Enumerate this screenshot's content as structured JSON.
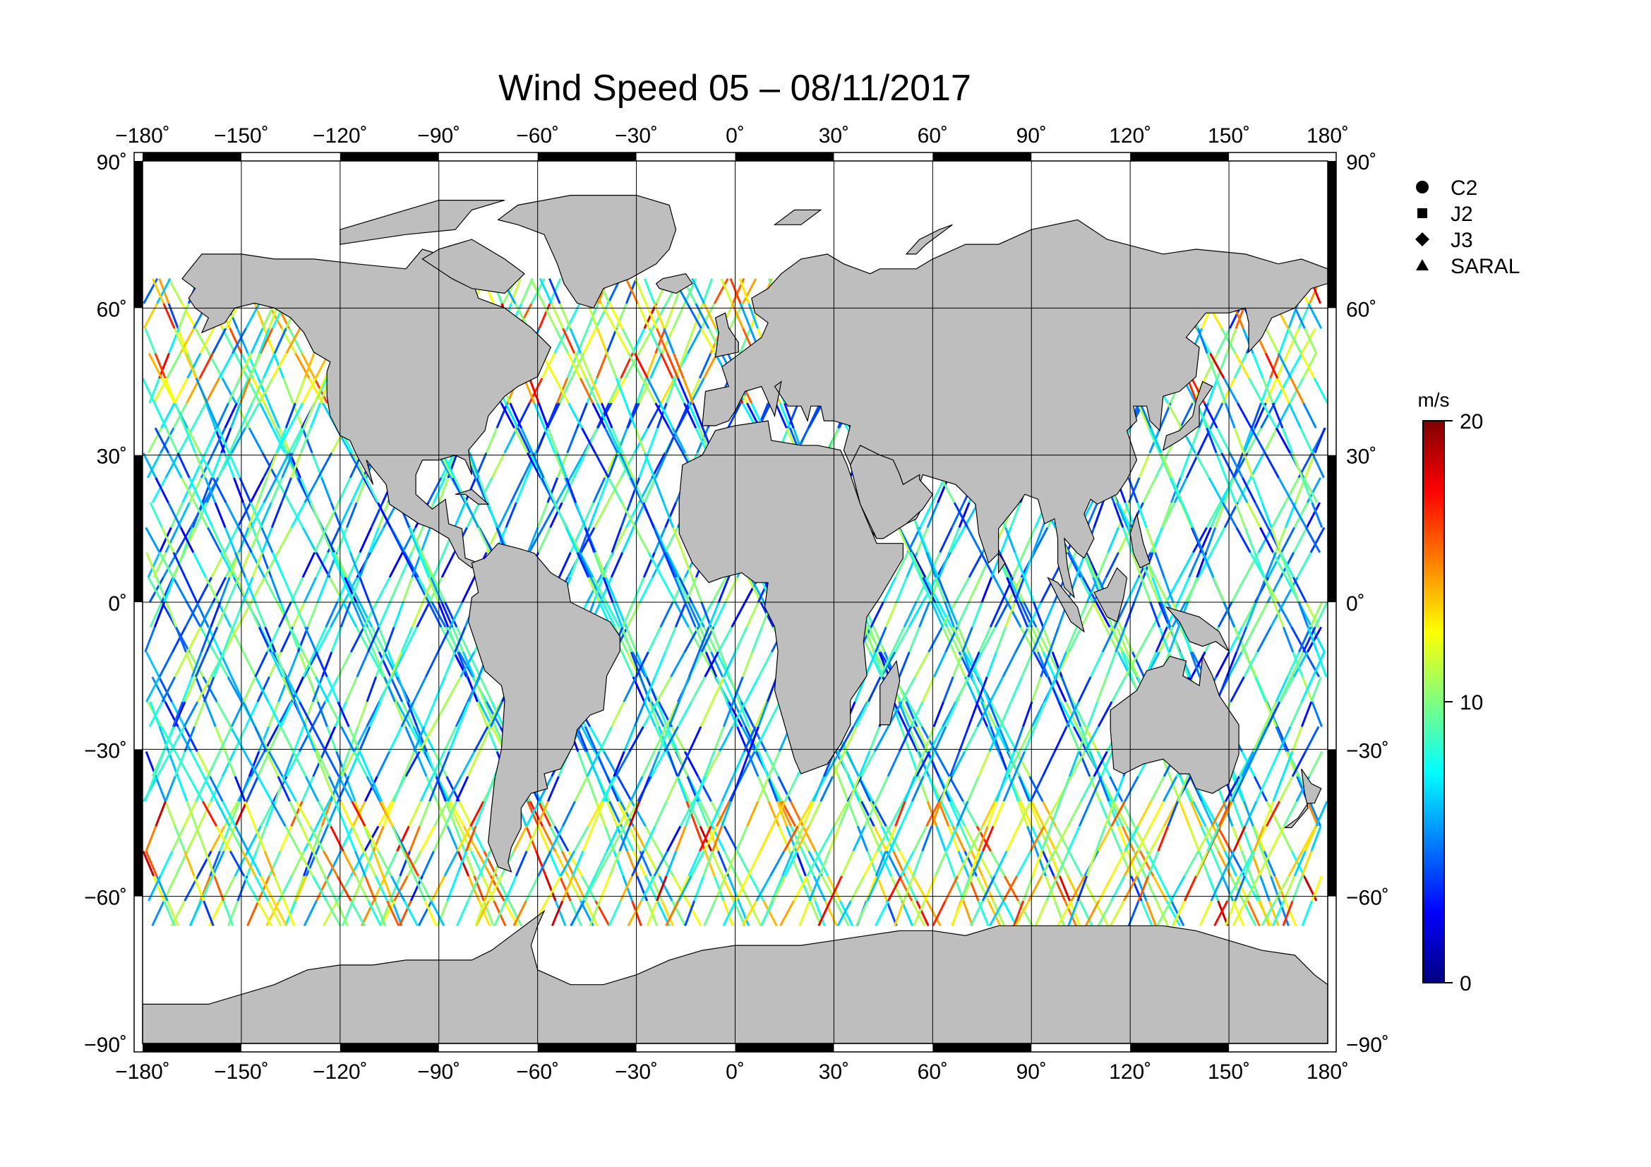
{
  "title": "Wind Speed 05 – 08/11/2017",
  "map": {
    "projection": "equirectangular",
    "lon_range": [
      -180,
      180
    ],
    "lat_range": [
      -90,
      90
    ],
    "lon_ticks": [
      -180,
      -150,
      -120,
      -90,
      -60,
      -30,
      0,
      30,
      60,
      90,
      120,
      150,
      180
    ],
    "lat_ticks": [
      90,
      60,
      30,
      0,
      -30,
      -60,
      -90
    ],
    "lon_tick_labels": [
      "−180˚",
      "−150˚",
      "−120˚",
      "−90˚",
      "−60˚",
      "−30˚",
      "0˚",
      "30˚",
      "60˚",
      "90˚",
      "120˚",
      "150˚",
      "180˚"
    ],
    "lat_tick_labels": [
      "90˚",
      "60˚",
      "30˚",
      "0˚",
      "−30˚",
      "−60˚",
      "−90˚"
    ],
    "grid": true,
    "land_color": "#bebebe",
    "ocean_color": "#ffffff",
    "data_coverage_lat": [
      -66,
      66
    ]
  },
  "legend": {
    "placement": "top-right",
    "items": [
      {
        "label": "C2",
        "symbol": "circle"
      },
      {
        "label": "J2",
        "symbol": "square"
      },
      {
        "label": "J3",
        "symbol": "diamond"
      },
      {
        "label": "SARAL",
        "symbol": "triangle"
      }
    ]
  },
  "colorbar": {
    "unit": "m/s",
    "min": 0,
    "max": 20,
    "tick_labels": [
      "20",
      "10",
      "0"
    ],
    "tick_values": [
      20,
      10,
      0
    ],
    "colormap": "jet",
    "colors": [
      "#00007f",
      "#0000ff",
      "#007fff",
      "#00ffff",
      "#7fff7f",
      "#ffff00",
      "#ff7f00",
      "#ff0000",
      "#7f0000"
    ]
  },
  "chart_data": {
    "type": "scatter",
    "description_series": "altimeter ground tracks colored by wind speed",
    "x_unit": "longitude (deg)",
    "y_unit": "latitude (deg)",
    "value_unit": "m/s",
    "xlim": [
      -180,
      180
    ],
    "ylim": [
      -90,
      90
    ],
    "clim": [
      0,
      20
    ]
  }
}
